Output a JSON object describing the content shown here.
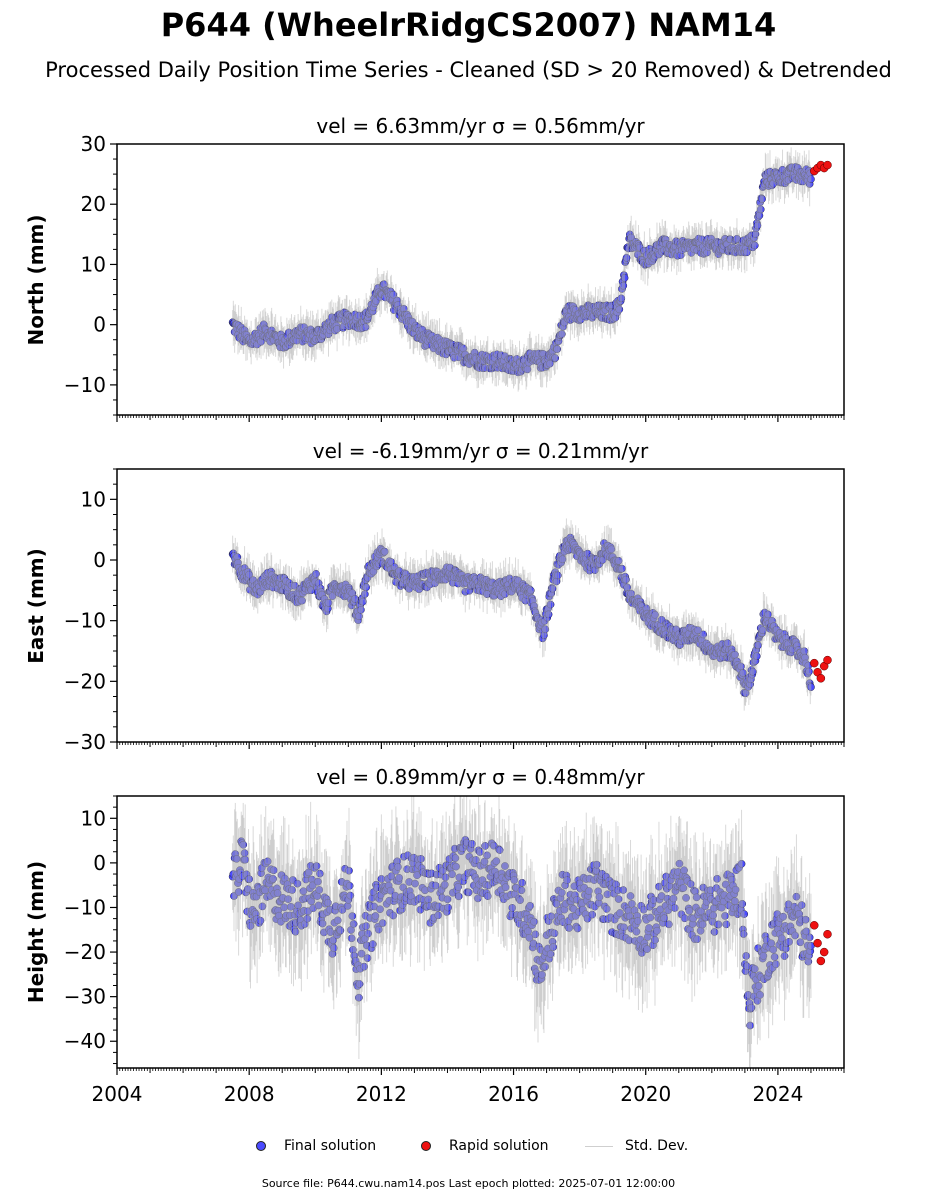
{
  "figure": {
    "title": "P644 (WheelrRidgCS2007) NAM14",
    "subtitle": "Processed Daily Position Time Series - Cleaned (SD > 20 Removed) & Detrended",
    "footer": "Source file: P644.cwu.nam14.pos  Last epoch plotted: 2025-07-01 12:00:00",
    "colors": {
      "final": "#4b4bff",
      "rapid": "#ee1111",
      "std_dev": "#aaaaaa",
      "axis": "#000000"
    }
  },
  "legend": {
    "final": "Final solution",
    "rapid": "Rapid solution",
    "std": "Std. Dev."
  },
  "chart_data": [
    {
      "type": "scatter",
      "title": "vel = 6.63mm/yr   σ = 0.56mm/yr",
      "ylabel": "North (mm)",
      "xlim": [
        2004,
        2026
      ],
      "ylim": [
        -15,
        30
      ],
      "yticks": [
        -10,
        0,
        10,
        20,
        30
      ],
      "ytick_labels": [
        "−10",
        "0",
        "10",
        "20",
        "30"
      ],
      "series": [
        {
          "name": "Final solution",
          "x": [
            2007.5,
            2008.0,
            2008.5,
            2009.0,
            2009.5,
            2010.0,
            2010.5,
            2011.0,
            2011.5,
            2012.0,
            2012.5,
            2013.0,
            2013.5,
            2014.0,
            2014.5,
            2015.0,
            2015.5,
            2016.0,
            2016.5,
            2017.0,
            2017.3,
            2017.6,
            2018.0,
            2018.5,
            2019.0,
            2019.2,
            2019.5,
            2020.0,
            2020.5,
            2021.0,
            2021.5,
            2022.0,
            2022.5,
            2023.0,
            2023.3,
            2023.6,
            2024.0,
            2024.5,
            2025.0
          ],
          "y": [
            0.0,
            -3.0,
            -1.0,
            -3.0,
            -1.5,
            -2.0,
            0.0,
            1.0,
            0.5,
            6.0,
            3.0,
            -1.0,
            -3.0,
            -4.0,
            -5.0,
            -6.0,
            -6.0,
            -7.0,
            -6.0,
            -6.0,
            -4.0,
            2.0,
            2.0,
            2.0,
            2.0,
            3.0,
            14.0,
            11.0,
            13.0,
            12.5,
            13.0,
            13.0,
            13.0,
            13.0,
            14.0,
            24.0,
            24.5,
            25.0,
            24.5
          ]
        },
        {
          "name": "Rapid solution",
          "x": [
            2025.1,
            2025.2,
            2025.3,
            2025.4,
            2025.5
          ],
          "y": [
            25.5,
            26.0,
            26.5,
            26.0,
            26.5
          ]
        }
      ]
    },
    {
      "type": "scatter",
      "title": "vel = -6.19mm/yr   σ = 0.21mm/yr",
      "ylabel": "East (mm)",
      "xlim": [
        2004,
        2026
      ],
      "ylim": [
        -30,
        15
      ],
      "yticks": [
        -30,
        -20,
        -10,
        0,
        10
      ],
      "ytick_labels": [
        "−30",
        "−20",
        "−10",
        "0",
        "10"
      ],
      "series": [
        {
          "name": "Final solution",
          "x": [
            2007.5,
            2007.8,
            2008.2,
            2008.6,
            2009.0,
            2009.5,
            2010.0,
            2010.3,
            2010.6,
            2011.0,
            2011.3,
            2011.6,
            2012.0,
            2012.5,
            2013.0,
            2013.5,
            2014.0,
            2014.5,
            2015.0,
            2015.5,
            2016.0,
            2016.5,
            2016.9,
            2017.2,
            2017.6,
            2018.0,
            2018.4,
            2018.8,
            2019.2,
            2019.5,
            2020.0,
            2020.5,
            2021.0,
            2021.5,
            2022.0,
            2022.5,
            2022.8,
            2023.0,
            2023.2,
            2023.6,
            2024.0,
            2024.4,
            2024.8,
            2025.0
          ],
          "y": [
            1.0,
            -2.0,
            -5.0,
            -3.0,
            -4.0,
            -6.0,
            -3.0,
            -8.0,
            -4.0,
            -5.0,
            -9.0,
            -2.0,
            1.0,
            -3.0,
            -4.0,
            -3.0,
            -2.0,
            -4.0,
            -4.0,
            -5.0,
            -4.0,
            -6.0,
            -12.0,
            -4.0,
            3.0,
            1.0,
            -1.0,
            2.0,
            -1.0,
            -6.0,
            -9.0,
            -11.0,
            -13.0,
            -12.0,
            -15.0,
            -15.0,
            -17.0,
            -21.0,
            -19.0,
            -9.0,
            -13.0,
            -14.0,
            -16.0,
            -20.0
          ]
        },
        {
          "name": "Rapid solution",
          "x": [
            2025.1,
            2025.2,
            2025.3,
            2025.4,
            2025.5
          ],
          "y": [
            -17.0,
            -18.5,
            -19.5,
            -17.5,
            -16.5
          ]
        }
      ]
    },
    {
      "type": "scatter",
      "title": "vel = 0.89mm/yr   σ = 0.48mm/yr",
      "ylabel": "Height (mm)",
      "xlim": [
        2004,
        2026
      ],
      "ylim": [
        -46,
        15
      ],
      "yticks": [
        -40,
        -30,
        -20,
        -10,
        0,
        10
      ],
      "ytick_labels": [
        "−40",
        "−30",
        "−20",
        "−10",
        "0",
        "10"
      ],
      "xticks": [
        2004,
        2008,
        2012,
        2016,
        2020,
        2024
      ],
      "xtick_labels": [
        "2004",
        "2008",
        "2012",
        "2016",
        "2020",
        "2024"
      ],
      "series": [
        {
          "name": "Final solution",
          "x": [
            2007.5,
            2007.8,
            2008.1,
            2008.5,
            2009.0,
            2009.5,
            2010.0,
            2010.5,
            2011.0,
            2011.3,
            2011.6,
            2012.0,
            2012.5,
            2013.0,
            2013.5,
            2014.0,
            2014.5,
            2015.0,
            2015.5,
            2016.0,
            2016.5,
            2016.8,
            2017.0,
            2017.5,
            2018.0,
            2018.5,
            2019.0,
            2019.5,
            2020.0,
            2020.5,
            2021.0,
            2021.5,
            2022.0,
            2022.5,
            2022.9,
            2023.1,
            2023.4,
            2023.8,
            2024.2,
            2024.6,
            2025.0
          ],
          "y": [
            -5.0,
            0.0,
            -12.0,
            -5.0,
            -8.0,
            -10.0,
            -5.0,
            -15.0,
            -5.0,
            -25.0,
            -15.0,
            -8.0,
            -5.0,
            -3.0,
            -8.0,
            -5.0,
            0.0,
            -3.0,
            0.0,
            -8.0,
            -12.0,
            -25.0,
            -18.0,
            -8.0,
            -10.0,
            -5.0,
            -10.0,
            -12.0,
            -15.0,
            -10.0,
            -5.0,
            -12.0,
            -10.0,
            -8.0,
            -5.0,
            -32.0,
            -25.0,
            -18.0,
            -15.0,
            -12.0,
            -22.0
          ]
        },
        {
          "name": "Rapid solution",
          "x": [
            2025.1,
            2025.2,
            2025.3,
            2025.4,
            2025.5
          ],
          "y": [
            -14.0,
            -18.0,
            -22.0,
            -20.0,
            -16.0
          ]
        }
      ]
    }
  ]
}
